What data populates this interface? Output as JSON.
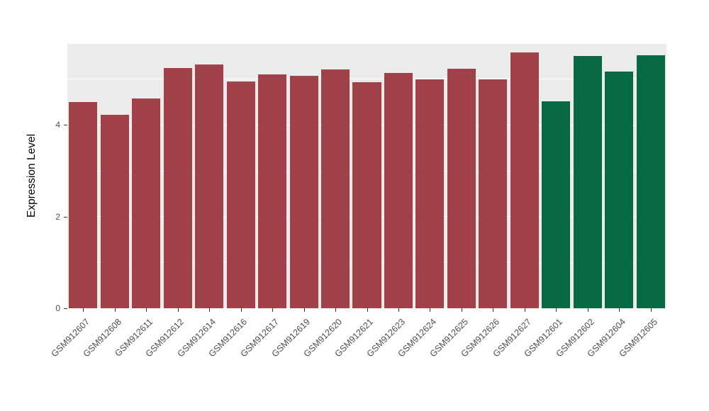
{
  "chart_data": {
    "type": "bar",
    "title": "",
    "xlabel": "",
    "ylabel": "Expression Level",
    "ylim": [
      0,
      5.77
    ],
    "yticks_major": [
      0,
      2,
      4
    ],
    "yticks_minor": [
      1,
      3,
      5
    ],
    "grid": true,
    "legend_position": "none",
    "panel_background": "#EBEBEB",
    "grid_color": "#FFFFFF",
    "categories": [
      "GSM912607",
      "GSM912608",
      "GSM912611",
      "GSM912612",
      "GSM912614",
      "GSM912616",
      "GSM912617",
      "GSM912619",
      "GSM912620",
      "GSM912621",
      "GSM912623",
      "GSM912624",
      "GSM912625",
      "GSM912626",
      "GSM912627",
      "GSM912601",
      "GSM912602",
      "GSM912604",
      "GSM912605"
    ],
    "values": [
      4.5,
      4.22,
      4.58,
      5.25,
      5.32,
      4.95,
      5.1,
      5.07,
      5.22,
      4.94,
      5.13,
      4.99,
      5.23,
      4.99,
      5.58,
      4.52,
      5.5,
      5.16,
      5.53
    ],
    "bar_groups": [
      "red",
      "red",
      "red",
      "red",
      "red",
      "red",
      "red",
      "red",
      "red",
      "red",
      "red",
      "red",
      "red",
      "red",
      "red",
      "green",
      "green",
      "green",
      "green"
    ],
    "group_colors": {
      "red": "#A04049",
      "green": "#086A43"
    }
  }
}
